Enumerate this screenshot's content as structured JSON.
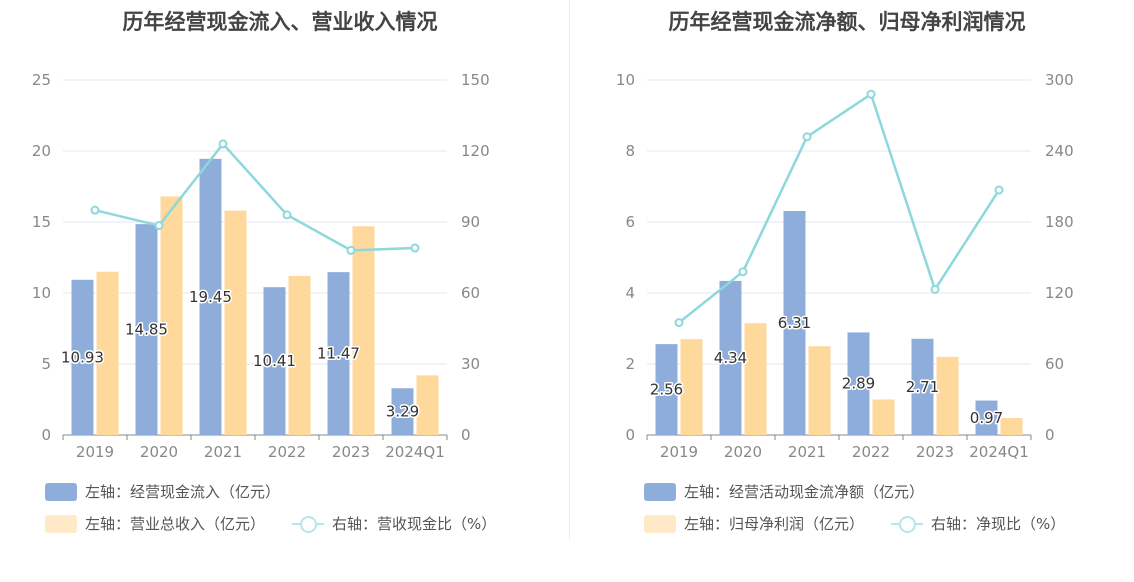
{
  "chart_data": [
    {
      "type": "bar",
      "title": "历年经营现金流入、营业收入情况",
      "categories": [
        "2019",
        "2020",
        "2021",
        "2022",
        "2023",
        "2024Q1"
      ],
      "y_left": {
        "ticks": [
          "0",
          "5",
          "10",
          "15",
          "20",
          "25"
        ],
        "ylim": [
          0,
          25
        ]
      },
      "y_right": {
        "ticks": [
          "0",
          "30",
          "60",
          "90",
          "120",
          "150"
        ],
        "ylim": [
          0,
          150
        ]
      },
      "series": [
        {
          "name": "左轴：经营现金流入（亿元）",
          "type": "bar",
          "axis": "left",
          "color": "#8eaddb",
          "values": [
            10.93,
            14.85,
            19.45,
            10.41,
            11.47,
            3.29
          ],
          "labels": [
            "10.93",
            "14.85",
            "19.45",
            "10.41",
            "11.47",
            "3.29"
          ]
        },
        {
          "name": "左轴：营业总收入（亿元）",
          "type": "bar",
          "axis": "left",
          "color": "#ffd99c",
          "values": [
            11.5,
            16.8,
            15.8,
            11.2,
            14.7,
            4.2
          ]
        },
        {
          "name": "右轴：营收现金比（%）",
          "type": "line",
          "axis": "right",
          "color": "#8dd8dc",
          "values": [
            95,
            88.5,
            123,
            93,
            78,
            79
          ]
        }
      ],
      "legend_placement": "bottom-left",
      "grid": true
    },
    {
      "type": "bar",
      "title": "历年经营现金流净额、归母净利润情况",
      "categories": [
        "2019",
        "2020",
        "2021",
        "2022",
        "2023",
        "2024Q1"
      ],
      "y_left": {
        "ticks": [
          "0",
          "2",
          "4",
          "6",
          "8",
          "10"
        ],
        "ylim": [
          0,
          10
        ]
      },
      "y_right": {
        "ticks": [
          "0",
          "60",
          "120",
          "180",
          "240",
          "300"
        ],
        "ylim": [
          0,
          300
        ]
      },
      "series": [
        {
          "name": "左轴：经营活动现金流净额（亿元）",
          "type": "bar",
          "axis": "left",
          "color": "#8eaddb",
          "values": [
            2.56,
            4.34,
            6.31,
            2.89,
            2.71,
            0.97
          ],
          "labels": [
            "2.56",
            "4.34",
            "6.31",
            "2.89",
            "2.71",
            "0.97"
          ]
        },
        {
          "name": "左轴：归母净利润（亿元）",
          "type": "bar",
          "axis": "left",
          "color": "#ffd99c",
          "values": [
            2.7,
            3.15,
            2.5,
            1.0,
            2.2,
            0.48
          ]
        },
        {
          "name": "右轴：净现比（%）",
          "type": "line",
          "axis": "right",
          "color": "#8dd8dc",
          "values": [
            95,
            138,
            252,
            288,
            123,
            207
          ]
        }
      ],
      "legend_placement": "bottom-left",
      "grid": true
    }
  ]
}
